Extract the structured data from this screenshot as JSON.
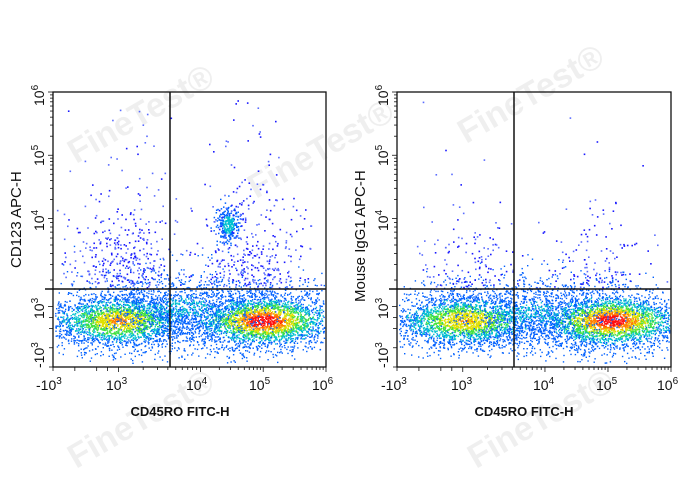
{
  "watermark": "FineTest®",
  "colors": {
    "frame": "#111111",
    "gate": "#111111",
    "density_low": "#0000ff",
    "density_mid": "#00c8c8",
    "density_midhigh": "#40e040",
    "density_high": "#ffd000",
    "density_peak": "#ff2000"
  },
  "chart_data": [
    {
      "type": "scatter",
      "subtype": "flow-cytometry-density-dot-plot",
      "title": "",
      "xlabel": "CD45RO FITC-H",
      "ylabel": "CD123 APC-H",
      "x_scale": "biexponential",
      "y_scale": "biexponential",
      "x_ticks": [
        "-10^3",
        "10^3",
        "10^4",
        "10^5",
        "10^6"
      ],
      "y_ticks": [
        "-10^3",
        "10^3",
        "10^4",
        "10^5",
        "10^6"
      ],
      "xlim": [
        "-10^3",
        "10^6"
      ],
      "ylim": [
        "-10^3",
        "10^6"
      ],
      "quadrant_gate": {
        "x": 3500,
        "y": 1500
      },
      "populations": [
        {
          "name": "CD45RO- CD123- cluster",
          "x_center": 1000,
          "y_center": 300,
          "density": "high"
        },
        {
          "name": "CD45RO+ CD123- cluster",
          "x_center": 90000,
          "y_center": 300,
          "density": "peak"
        },
        {
          "name": "CD123+ cluster (basophils/pDC)",
          "x_center": 25000,
          "y_center": 9000,
          "density": "medium"
        }
      ],
      "legend": []
    },
    {
      "type": "scatter",
      "subtype": "flow-cytometry-density-dot-plot",
      "title": "",
      "xlabel": "CD45RO FITC-H",
      "ylabel": "Mouse IgG1 APC-H",
      "x_scale": "biexponential",
      "y_scale": "biexponential",
      "x_ticks": [
        "-10^3",
        "10^3",
        "10^4",
        "10^5",
        "10^6"
      ],
      "y_ticks": [
        "-10^3",
        "10^3",
        "10^4",
        "10^5",
        "10^6"
      ],
      "xlim": [
        "-10^3",
        "10^6"
      ],
      "ylim": [
        "-10^3",
        "10^6"
      ],
      "quadrant_gate": {
        "x": 4000,
        "y": 1500
      },
      "populations": [
        {
          "name": "CD45RO- isotype- cluster",
          "x_center": 1200,
          "y_center": 300,
          "density": "high"
        },
        {
          "name": "CD45RO+ isotype- cluster",
          "x_center": 100000,
          "y_center": 300,
          "density": "peak"
        }
      ],
      "legend": []
    }
  ],
  "plots": [
    {
      "ylabel": "CD123 APC-H",
      "xlabel": "CD45RO FITC-H",
      "xticks": [
        {
          "base": "-10",
          "exp": "3"
        },
        {
          "base": "10",
          "exp": "3"
        },
        {
          "base": "10",
          "exp": "4"
        },
        {
          "base": "10",
          "exp": "5"
        },
        {
          "base": "10",
          "exp": "6"
        }
      ],
      "yticks": [
        {
          "base": "-10",
          "exp": "3"
        },
        {
          "base": "10",
          "exp": "3"
        },
        {
          "base": "10",
          "exp": "4"
        },
        {
          "base": "10",
          "exp": "5"
        },
        {
          "base": "10",
          "exp": "6"
        }
      ]
    },
    {
      "ylabel": "Mouse IgG1 APC-H",
      "xlabel": "CD45RO FITC-H",
      "xticks": [
        {
          "base": "-10",
          "exp": "3"
        },
        {
          "base": "10",
          "exp": "3"
        },
        {
          "base": "10",
          "exp": "4"
        },
        {
          "base": "10",
          "exp": "5"
        },
        {
          "base": "10",
          "exp": "6"
        }
      ],
      "yticks": [
        {
          "base": "-10",
          "exp": "3"
        },
        {
          "base": "10",
          "exp": "3"
        },
        {
          "base": "10",
          "exp": "4"
        },
        {
          "base": "10",
          "exp": "5"
        },
        {
          "base": "10",
          "exp": "6"
        }
      ]
    }
  ]
}
